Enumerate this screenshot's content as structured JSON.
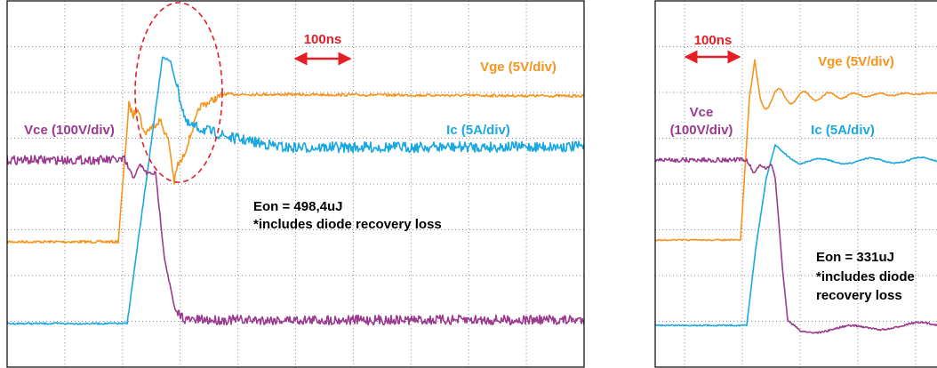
{
  "left_panel": {
    "time_scale": "100ns",
    "vge_label": "Vge (5V/div)",
    "vce_label": "Vce (100V/div)",
    "ic_label": "Ic (5A/div)",
    "eon": "Eon = 498,4uJ",
    "note": "*includes diode recovery loss"
  },
  "right_panel": {
    "time_scale": "100ns",
    "vge_label": "Vge (5V/div)",
    "vce_label_line1": "Vce",
    "vce_label_line2": "(100V/div)",
    "ic_label": "Ic (5A/div)",
    "eon": "Eon = 331uJ",
    "note_line1": "*includes diode",
    "note_line2": "recovery loss"
  }
}
